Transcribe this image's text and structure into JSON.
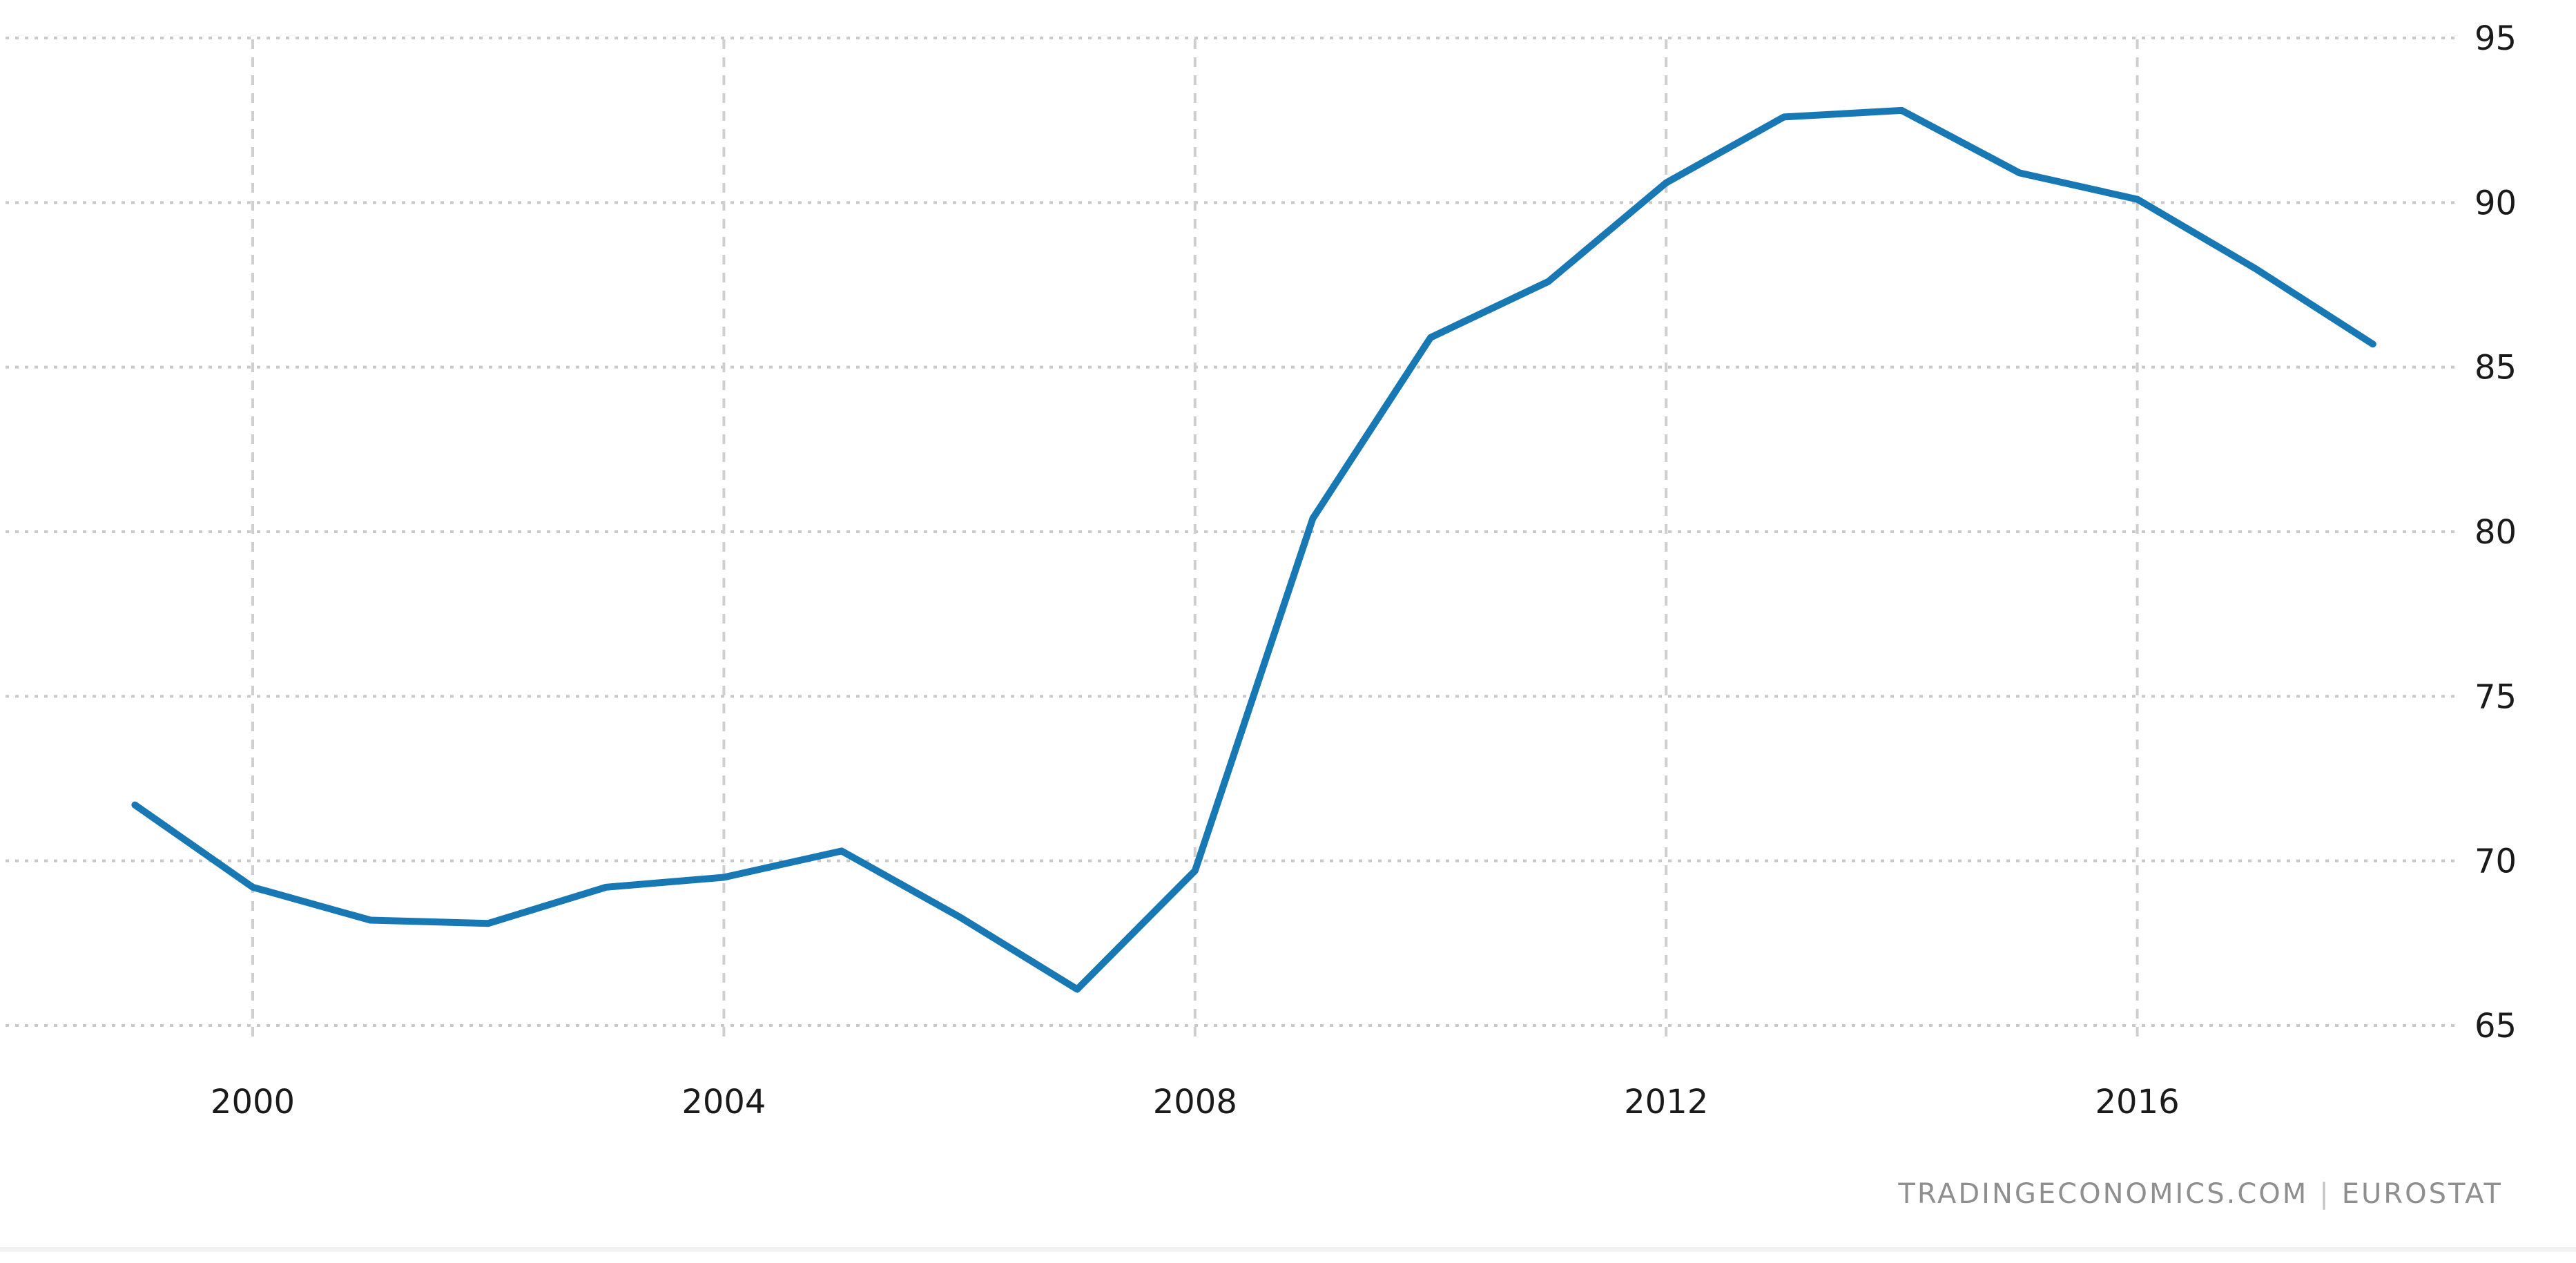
{
  "chart_data": {
    "type": "line",
    "title": "",
    "xlabel": "",
    "ylabel": "",
    "x": [
      1999,
      2000,
      2001,
      2002,
      2003,
      2004,
      2005,
      2006,
      2007,
      2008,
      2009,
      2010,
      2011,
      2012,
      2013,
      2014,
      2015,
      2016,
      2017,
      2018
    ],
    "values": [
      71.7,
      69.2,
      68.2,
      68.1,
      69.2,
      69.5,
      70.3,
      68.3,
      66.1,
      69.7,
      80.4,
      85.9,
      87.6,
      90.6,
      92.6,
      92.8,
      90.9,
      90.1,
      88.0,
      85.7
    ],
    "x_ticks": [
      2000,
      2004,
      2008,
      2012,
      2016
    ],
    "y_ticks": [
      95,
      90,
      85,
      80,
      75,
      70,
      65
    ],
    "ylim": [
      65,
      95
    ],
    "grid": true,
    "legend": "none",
    "line_color": "#1878b4",
    "h_grid_color": "#c9c9c9",
    "v_grid_color": "#cfcfcf",
    "label_color": "#1a1a1a"
  },
  "watermark": {
    "brand": "TRADINGECONOMICS.COM",
    "divider": "|",
    "source": "EUROSTAT"
  }
}
